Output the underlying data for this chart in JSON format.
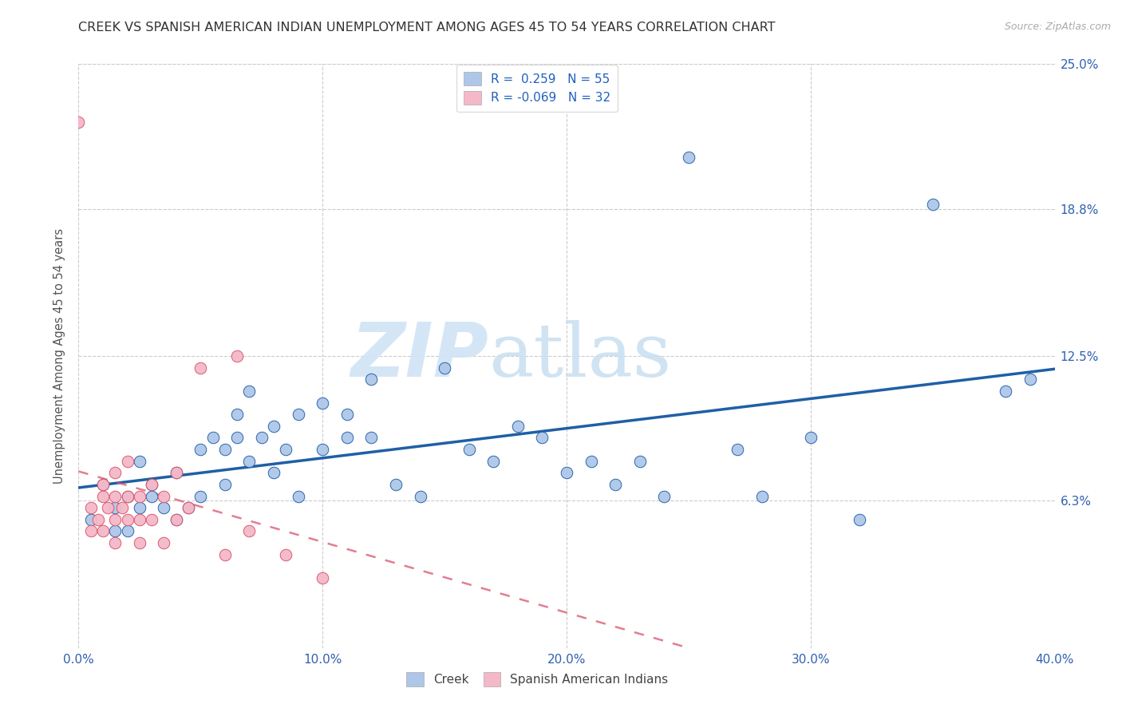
{
  "title": "CREEK VS SPANISH AMERICAN INDIAN UNEMPLOYMENT AMONG AGES 45 TO 54 YEARS CORRELATION CHART",
  "source": "Source: ZipAtlas.com",
  "ylabel": "Unemployment Among Ages 45 to 54 years",
  "xlim": [
    0.0,
    0.4
  ],
  "ylim": [
    0.0,
    0.25
  ],
  "xtick_labels": [
    "0.0%",
    "10.0%",
    "20.0%",
    "30.0%",
    "40.0%"
  ],
  "xtick_values": [
    0.0,
    0.1,
    0.2,
    0.3,
    0.4
  ],
  "ytick_labels": [
    "25.0%",
    "18.8%",
    "12.5%",
    "6.3%"
  ],
  "ytick_values": [
    0.25,
    0.188,
    0.125,
    0.063
  ],
  "creek_R": "0.259",
  "creek_N": "55",
  "sai_R": "-0.069",
  "sai_N": "32",
  "creek_color": "#aec6e8",
  "creek_line_color": "#1f5fa6",
  "sai_color": "#f4b8c8",
  "sai_line_color": "#d9536a",
  "watermark_zip": "ZIP",
  "watermark_atlas": "atlas",
  "creek_x": [
    0.005,
    0.01,
    0.015,
    0.015,
    0.02,
    0.02,
    0.025,
    0.025,
    0.03,
    0.03,
    0.035,
    0.04,
    0.04,
    0.045,
    0.05,
    0.05,
    0.055,
    0.06,
    0.06,
    0.065,
    0.065,
    0.07,
    0.07,
    0.075,
    0.08,
    0.08,
    0.085,
    0.09,
    0.09,
    0.1,
    0.1,
    0.11,
    0.11,
    0.12,
    0.12,
    0.13,
    0.14,
    0.15,
    0.16,
    0.17,
    0.18,
    0.19,
    0.2,
    0.21,
    0.22,
    0.23,
    0.24,
    0.25,
    0.27,
    0.28,
    0.3,
    0.32,
    0.35,
    0.38,
    0.39
  ],
  "creek_y": [
    0.055,
    0.07,
    0.06,
    0.05,
    0.065,
    0.05,
    0.08,
    0.06,
    0.065,
    0.07,
    0.06,
    0.075,
    0.055,
    0.06,
    0.085,
    0.065,
    0.09,
    0.07,
    0.085,
    0.09,
    0.1,
    0.08,
    0.11,
    0.09,
    0.075,
    0.095,
    0.085,
    0.065,
    0.1,
    0.085,
    0.105,
    0.09,
    0.1,
    0.115,
    0.09,
    0.07,
    0.065,
    0.12,
    0.085,
    0.08,
    0.095,
    0.09,
    0.075,
    0.08,
    0.07,
    0.08,
    0.065,
    0.21,
    0.085,
    0.065,
    0.09,
    0.055,
    0.19,
    0.11,
    0.115
  ],
  "sai_x": [
    0.0,
    0.005,
    0.005,
    0.008,
    0.01,
    0.01,
    0.01,
    0.012,
    0.015,
    0.015,
    0.015,
    0.015,
    0.018,
    0.02,
    0.02,
    0.02,
    0.025,
    0.025,
    0.025,
    0.03,
    0.03,
    0.035,
    0.035,
    0.04,
    0.04,
    0.045,
    0.05,
    0.06,
    0.065,
    0.07,
    0.085,
    0.1
  ],
  "sai_y": [
    0.225,
    0.06,
    0.05,
    0.055,
    0.07,
    0.065,
    0.05,
    0.06,
    0.065,
    0.075,
    0.055,
    0.045,
    0.06,
    0.08,
    0.065,
    0.055,
    0.065,
    0.055,
    0.045,
    0.07,
    0.055,
    0.065,
    0.045,
    0.075,
    0.055,
    0.06,
    0.12,
    0.04,
    0.125,
    0.05,
    0.04,
    0.03
  ]
}
